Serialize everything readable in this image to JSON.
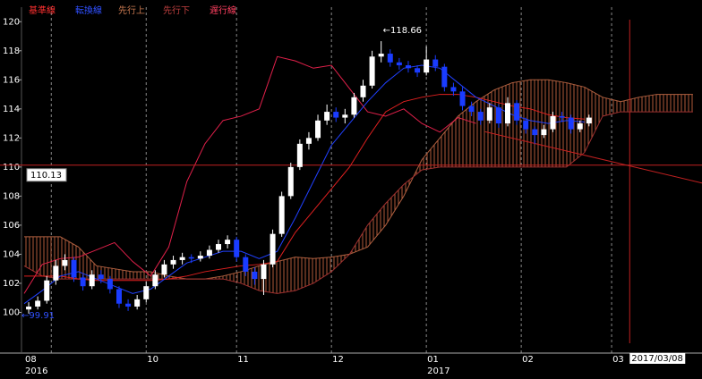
{
  "chart_data": {
    "type": "candlestick",
    "legend": [
      "基準線",
      "転換線",
      "先行上",
      "先行下",
      "遅行線"
    ],
    "ylim": [
      97.2,
      121.0
    ],
    "yticks": [
      100,
      102,
      104,
      106,
      108,
      110,
      112,
      114,
      116,
      118,
      120
    ],
    "xlim": [
      0,
      150
    ],
    "xticks": [
      {
        "value": 0,
        "label": "08"
      },
      {
        "value": 6,
        "label": null
      },
      {
        "value": 27,
        "label": "10"
      },
      {
        "value": 47,
        "label": "11"
      },
      {
        "value": 68,
        "label": "12"
      },
      {
        "value": 89,
        "label": "01"
      },
      {
        "value": 110,
        "label": "02"
      },
      {
        "value": 130,
        "label": "03"
      }
    ],
    "years": [
      {
        "value": 0,
        "label": "2016"
      },
      {
        "value": 89,
        "label": "2017"
      }
    ],
    "candle_x": [
      1,
      3,
      5,
      7,
      9,
      11,
      13,
      15,
      17,
      19,
      21,
      23,
      25,
      27,
      29,
      31,
      33,
      35,
      37,
      39,
      41,
      43,
      45,
      47,
      49,
      51,
      53,
      55,
      57,
      59,
      61,
      63,
      65,
      67,
      69,
      71,
      73,
      75,
      77,
      79,
      81,
      83,
      85,
      87,
      89,
      91,
      93,
      95,
      97,
      99,
      101,
      103,
      105,
      107,
      109,
      111,
      113,
      115,
      117,
      119,
      121,
      123,
      125
    ],
    "candles": [
      [
        100.2,
        100.7,
        99.91,
        100.4
      ],
      [
        100.4,
        101.1,
        100.2,
        100.8
      ],
      [
        100.8,
        102.5,
        100.6,
        102.2
      ],
      [
        102.2,
        103.6,
        101.9,
        103.2
      ],
      [
        103.2,
        104.0,
        102.9,
        103.6
      ],
      [
        103.6,
        103.8,
        102.1,
        102.4
      ],
      [
        102.4,
        102.6,
        101.5,
        101.8
      ],
      [
        101.8,
        102.9,
        101.6,
        102.6
      ],
      [
        102.6,
        102.9,
        102.0,
        102.3
      ],
      [
        102.3,
        102.5,
        101.3,
        101.6
      ],
      [
        101.6,
        101.8,
        100.3,
        100.6
      ],
      [
        100.6,
        100.9,
        100.1,
        100.4
      ],
      [
        100.4,
        101.2,
        100.2,
        100.9
      ],
      [
        100.9,
        102.1,
        100.7,
        101.8
      ],
      [
        101.8,
        102.9,
        101.6,
        102.6
      ],
      [
        102.6,
        103.6,
        102.4,
        103.3
      ],
      [
        103.3,
        103.9,
        103.0,
        103.6
      ],
      [
        103.6,
        104.1,
        103.3,
        103.8
      ],
      [
        103.8,
        104.0,
        103.4,
        103.7
      ],
      [
        103.7,
        104.2,
        103.5,
        103.9
      ],
      [
        103.9,
        104.6,
        103.7,
        104.3
      ],
      [
        104.3,
        105.0,
        104.1,
        104.7
      ],
      [
        104.7,
        105.3,
        104.4,
        105.0
      ],
      [
        105.0,
        105.2,
        103.5,
        103.8
      ],
      [
        103.8,
        104.0,
        102.5,
        102.8
      ],
      [
        102.8,
        103.1,
        101.9,
        102.3
      ],
      [
        102.3,
        103.6,
        101.2,
        103.3
      ],
      [
        103.3,
        105.7,
        103.1,
        105.4
      ],
      [
        105.4,
        108.3,
        105.2,
        108.0
      ],
      [
        108.0,
        110.3,
        107.8,
        110.0
      ],
      [
        110.0,
        111.9,
        109.8,
        111.6
      ],
      [
        111.6,
        112.4,
        111.2,
        112.0
      ],
      [
        112.0,
        113.6,
        111.8,
        113.2
      ],
      [
        113.2,
        114.3,
        112.9,
        113.8
      ],
      [
        113.8,
        114.1,
        113.1,
        113.4
      ],
      [
        113.4,
        114.0,
        113.0,
        113.6
      ],
      [
        113.6,
        115.1,
        113.4,
        114.8
      ],
      [
        114.8,
        116.0,
        114.5,
        115.6
      ],
      [
        115.6,
        118.0,
        115.4,
        117.6
      ],
      [
        117.6,
        118.66,
        117.2,
        117.8
      ],
      [
        117.8,
        118.1,
        116.9,
        117.2
      ],
      [
        117.2,
        117.5,
        116.7,
        117.0
      ],
      [
        117.0,
        117.3,
        116.5,
        116.8
      ],
      [
        116.8,
        117.0,
        116.2,
        116.5
      ],
      [
        116.5,
        118.3,
        116.3,
        117.4
      ],
      [
        117.4,
        117.7,
        116.6,
        116.9
      ],
      [
        116.9,
        117.1,
        115.2,
        115.5
      ],
      [
        115.5,
        115.8,
        114.9,
        115.2
      ],
      [
        115.2,
        115.5,
        113.9,
        114.2
      ],
      [
        114.2,
        114.5,
        113.5,
        113.8
      ],
      [
        113.8,
        114.0,
        112.9,
        113.2
      ],
      [
        113.2,
        114.4,
        113.0,
        114.1
      ],
      [
        114.1,
        114.3,
        112.7,
        113.0
      ],
      [
        113.0,
        114.8,
        112.8,
        114.4
      ],
      [
        114.4,
        114.6,
        112.9,
        113.2
      ],
      [
        113.2,
        113.4,
        112.3,
        112.6
      ],
      [
        112.6,
        112.8,
        111.6,
        112.2
      ],
      [
        112.2,
        112.9,
        112.0,
        112.6
      ],
      [
        112.6,
        113.8,
        112.4,
        113.5
      ],
      [
        113.5,
        113.8,
        113.1,
        113.4
      ],
      [
        113.4,
        113.6,
        112.3,
        112.6
      ],
      [
        112.6,
        113.2,
        112.4,
        113.0
      ],
      [
        113.0,
        113.6,
        112.8,
        113.4
      ]
    ],
    "up_color": "#ffffff",
    "down_color": "#1a3cff",
    "line_x": [
      0,
      4,
      8,
      12,
      16,
      20,
      24,
      28,
      32,
      36,
      40,
      44,
      48,
      52,
      56,
      60,
      64,
      68,
      72,
      76,
      80,
      84,
      88,
      92,
      96,
      100,
      104,
      108,
      112,
      116,
      120,
      124,
      128,
      132,
      136,
      140,
      144,
      148
    ],
    "series": [
      {
        "name": "基準線",
        "color": "#e02020",
        "values": [
          102.5,
          102.5,
          102.5,
          102.3,
          102.2,
          102.2,
          102.2,
          102.2,
          102.3,
          102.5,
          102.8,
          103,
          103.2,
          103.3,
          103.5,
          105.5,
          107,
          108.5,
          110,
          112,
          113.8,
          114.5,
          114.8,
          115,
          115,
          114.8,
          114.5,
          114.2,
          114,
          113.6,
          113.4,
          113.3,
          null,
          null,
          null,
          null,
          null,
          null
        ]
      },
      {
        "name": "転換線",
        "color": "#2040ff",
        "values": [
          100.6,
          101.5,
          102.5,
          102.8,
          102.3,
          101.8,
          101.3,
          101.6,
          102.5,
          103.4,
          103.8,
          104.2,
          104.2,
          103.7,
          104.2,
          106.5,
          109,
          111.5,
          113,
          114.5,
          115.8,
          116.8,
          117,
          116.8,
          115.8,
          114.8,
          114.2,
          113.6,
          113.2,
          113,
          113.2,
          113.1,
          null,
          null,
          null,
          null,
          null,
          null
        ]
      },
      {
        "name": "先行上",
        "color": "#b06040",
        "values": [
          105.2,
          105.2,
          105.2,
          104.5,
          103.2,
          103,
          102.8,
          102.8,
          102.5,
          102.3,
          102.3,
          102.5,
          102.8,
          103.2,
          103.5,
          103.8,
          103.7,
          103.8,
          104,
          104.5,
          106,
          108,
          110.5,
          112,
          113.5,
          114.5,
          115.3,
          115.8,
          116,
          116,
          115.8,
          115.5,
          114.8,
          114.5,
          114.8,
          115,
          115,
          115
        ]
      },
      {
        "name": "先行下",
        "color": "#a03030",
        "values": [
          103.2,
          102.5,
          102.3,
          102.3,
          102.3,
          102.3,
          102.3,
          102.3,
          102.3,
          102.3,
          102.3,
          102.3,
          102,
          101.5,
          101.3,
          101.5,
          102,
          102.8,
          104,
          106,
          107.5,
          108.8,
          109.8,
          110,
          110,
          110,
          110,
          110,
          110,
          110,
          110,
          111,
          113.5,
          113.8,
          113.8,
          113.8,
          113.8,
          113.8
        ]
      },
      {
        "name": "遅行線",
        "color": "#e0204a",
        "values": [
          101.3,
          103.3,
          103.7,
          103.8,
          104.3,
          104.8,
          103.5,
          102.5,
          104.5,
          109,
          111.6,
          113.2,
          113.5,
          114,
          117.6,
          117.3,
          116.8,
          117,
          115.4,
          113.8,
          113.5,
          114,
          113,
          112.4,
          113.4,
          113,
          null,
          null,
          null,
          null,
          null,
          null,
          null,
          null,
          null,
          null,
          null,
          null
        ]
      }
    ],
    "trendline": {
      "x": [
        102,
        150
      ],
      "values": [
        112.43,
        108.9
      ],
      "color": "#c02020"
    },
    "high_label": "←118.66",
    "low_label": "←99.91",
    "cursor_price": 110.13,
    "cursor_x": 134,
    "cursor_date": "2017/03/08"
  }
}
